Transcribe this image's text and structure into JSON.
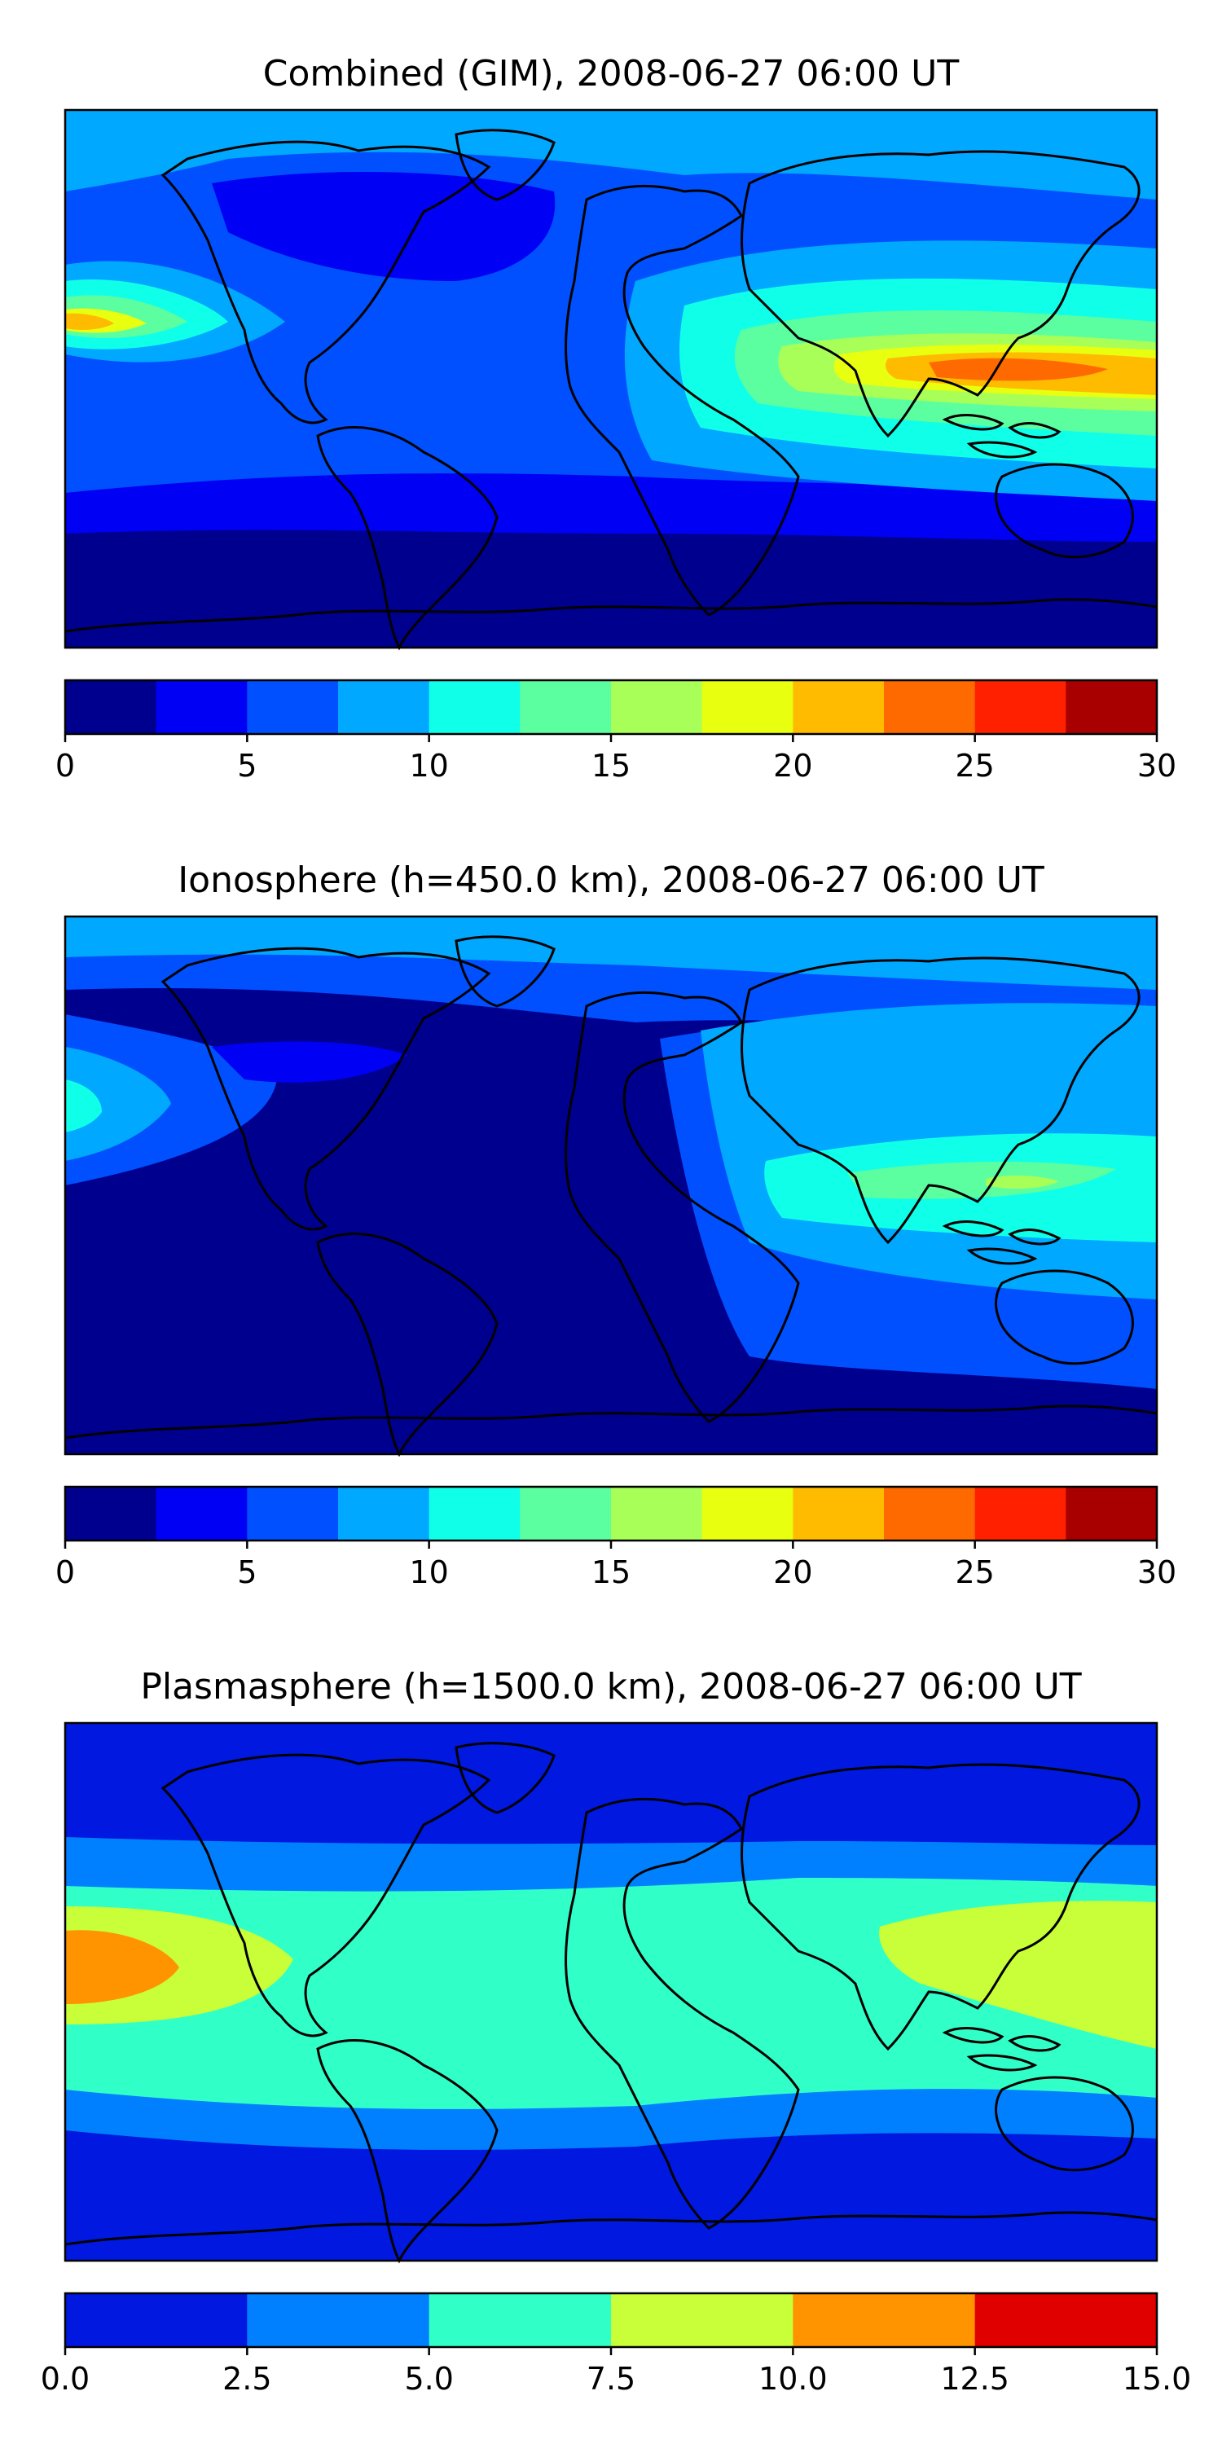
{
  "chart_data": [
    {
      "type": "heatmap",
      "title": "Combined (GIM), 2008-06-27 06:00 UT",
      "colorbar": {
        "vmin": 0,
        "vmax": 30,
        "step": 2.5,
        "ticks": [
          "0",
          "5",
          "10",
          "15",
          "20",
          "25",
          "30"
        ],
        "colors": [
          "#00008f",
          "#0000f5",
          "#0050ff",
          "#00a8ff",
          "#10ffe8",
          "#5cffa0",
          "#a8ff58",
          "#e8ff10",
          "#ffbb00",
          "#ff6a00",
          "#ff2000",
          "#a80000"
        ]
      },
      "regions": [
        {
          "location": "Pacific, near 180°",
          "value_range": [
            17.5,
            20
          ]
        },
        {
          "location": "South-East Asia / Indonesia",
          "value_range": [
            22.5,
            25
          ]
        },
        {
          "location": "North America / North Atlantic",
          "value_range": [
            2.5,
            5
          ]
        },
        {
          "location": "Antarctic",
          "value_range": [
            0,
            2.5
          ]
        }
      ]
    },
    {
      "type": "heatmap",
      "title": "Ionosphere  (h=450.0 km), 2008-06-27 06:00 UT",
      "colorbar": {
        "vmin": 0,
        "vmax": 30,
        "step": 2.5,
        "ticks": [
          "0",
          "5",
          "10",
          "15",
          "20",
          "25",
          "30"
        ],
        "colors": [
          "#00008f",
          "#0000f5",
          "#0050ff",
          "#00a8ff",
          "#10ffe8",
          "#5cffa0",
          "#a8ff58",
          "#e8ff10",
          "#ffbb00",
          "#ff6a00",
          "#ff2000",
          "#a80000"
        ]
      },
      "regions": [
        {
          "location": "South-East Asia / Indonesia",
          "value_range": [
            15,
            17.5
          ]
        },
        {
          "location": "Americas and Atlantic",
          "value_range": [
            0,
            2.5
          ]
        },
        {
          "location": "Northern Asia",
          "value_range": [
            7.5,
            10
          ]
        }
      ]
    },
    {
      "type": "heatmap",
      "title": "Plasmasphere (h=1500.0 km), 2008-06-27 06:00 UT",
      "colorbar": {
        "vmin": 0.0,
        "vmax": 15.0,
        "step": 2.5,
        "ticks": [
          "0.0",
          "2.5",
          "5.0",
          "7.5",
          "10.0",
          "12.5",
          "15.0"
        ],
        "colors": [
          "#0018e0",
          "#0080ff",
          "#30ffc8",
          "#c8ff38",
          "#ff9400",
          "#e00000"
        ]
      },
      "regions": [
        {
          "location": "Pacific, near 180°",
          "value_range": [
            10.0,
            12.5
          ]
        },
        {
          "location": "Tropics band",
          "value_range": [
            5.0,
            7.5
          ]
        },
        {
          "location": "Polar regions",
          "value_range": [
            0.0,
            2.5
          ]
        }
      ]
    }
  ]
}
